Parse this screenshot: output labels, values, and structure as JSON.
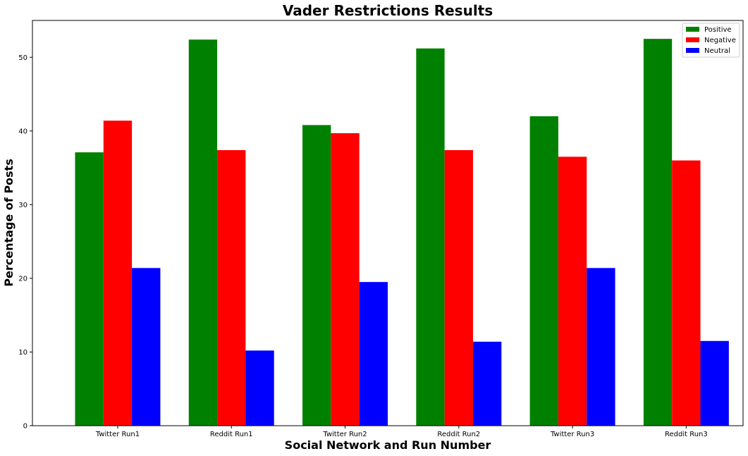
{
  "chart_data": {
    "type": "bar",
    "title": "Vader Restrictions Results",
    "xlabel": "Social Network and Run Number",
    "ylabel": "Percentage of Posts",
    "categories": [
      "Twitter Run1",
      "Reddit Run1",
      "Twitter Run2",
      "Reddit Run2",
      "Twitter Run3",
      "Reddit Run3"
    ],
    "series": [
      {
        "name": "Positive",
        "color": "#008000",
        "values": [
          37.1,
          52.4,
          40.8,
          51.2,
          42.0,
          52.5
        ]
      },
      {
        "name": "Negative",
        "color": "#ff0000",
        "values": [
          41.4,
          37.4,
          39.7,
          37.4,
          36.5,
          36.0
        ]
      },
      {
        "name": "Neutral",
        "color": "#0000ff",
        "values": [
          21.4,
          10.2,
          19.5,
          11.4,
          21.4,
          11.5
        ]
      }
    ],
    "ylim": [
      0,
      55
    ],
    "yticks": [
      0,
      10,
      20,
      30,
      40,
      50
    ],
    "grid": false,
    "legend_position": "top-right"
  }
}
